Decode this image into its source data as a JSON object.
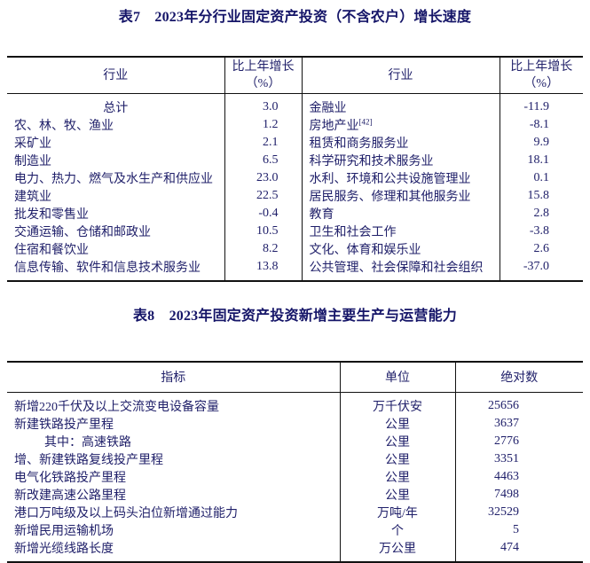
{
  "colors": {
    "background": "#ffffff",
    "title": "#151568",
    "text": "#20206a",
    "border": "#111111"
  },
  "table7": {
    "title": "表7　2023年分行业固定资产投资（不含农户）增长速度",
    "header": {
      "industry": "行业",
      "growth_line1": "比上年增长",
      "growth_line2": "（%）"
    },
    "rows": [
      {
        "left": {
          "label": "总计",
          "value": "3.0",
          "center": true
        },
        "right": {
          "label": "金融业",
          "value": "-11.9"
        }
      },
      {
        "left": {
          "label": "农、林、牧、渔业",
          "value": "1.2"
        },
        "right": {
          "label": "房地产业",
          "sup": "[42]",
          "value": "-8.1"
        }
      },
      {
        "left": {
          "label": "采矿业",
          "value": "2.1"
        },
        "right": {
          "label": "租赁和商务服务业",
          "value": "9.9"
        }
      },
      {
        "left": {
          "label": "制造业",
          "value": "6.5"
        },
        "right": {
          "label": "科学研究和技术服务业",
          "value": "18.1"
        }
      },
      {
        "left": {
          "label": "电力、热力、燃气及水生产和供应业",
          "value": "23.0"
        },
        "right": {
          "label": "水利、环境和公共设施管理业",
          "value": "0.1"
        }
      },
      {
        "left": {
          "label": "建筑业",
          "value": "22.5"
        },
        "right": {
          "label": "居民服务、修理和其他服务业",
          "value": "15.8"
        }
      },
      {
        "left": {
          "label": "批发和零售业",
          "value": "-0.4"
        },
        "right": {
          "label": "教育",
          "value": "2.8"
        }
      },
      {
        "left": {
          "label": "交通运输、仓储和邮政业",
          "value": "10.5"
        },
        "right": {
          "label": "卫生和社会工作",
          "value": "-3.8"
        }
      },
      {
        "left": {
          "label": "住宿和餐饮业",
          "value": "8.2"
        },
        "right": {
          "label": "文化、体育和娱乐业",
          "value": "2.6"
        }
      },
      {
        "left": {
          "label": "信息传输、软件和信息技术服务业",
          "value": "13.8"
        },
        "right": {
          "label": "公共管理、社会保障和社会组织",
          "value": "-37.0"
        }
      }
    ]
  },
  "table8": {
    "title": "表8　2023年固定资产投资新增主要生产与运营能力",
    "header": {
      "indicator": "指标",
      "unit": "单位",
      "absolute": "绝对数"
    },
    "rows": [
      {
        "label": "新增220千伏及以上交流变电设备容量",
        "unit": "万千伏安",
        "value": "25656"
      },
      {
        "label": "新建铁路投产里程",
        "unit": "公里",
        "value": "3637"
      },
      {
        "label": "其中：高速铁路",
        "unit": "公里",
        "value": "2776",
        "indent": true
      },
      {
        "label": "增、新建铁路复线投产里程",
        "unit": "公里",
        "value": "3351"
      },
      {
        "label": "电气化铁路投产里程",
        "unit": "公里",
        "value": "4463"
      },
      {
        "label": "新改建高速公路里程",
        "unit": "公里",
        "value": "7498"
      },
      {
        "label": "港口万吨级及以上码头泊位新增通过能力",
        "unit": "万吨/年",
        "value": "32529"
      },
      {
        "label": "新增民用运输机场",
        "unit": "个",
        "value": "5"
      },
      {
        "label": "新增光缆线路长度",
        "unit": "万公里",
        "value": "474"
      }
    ]
  }
}
